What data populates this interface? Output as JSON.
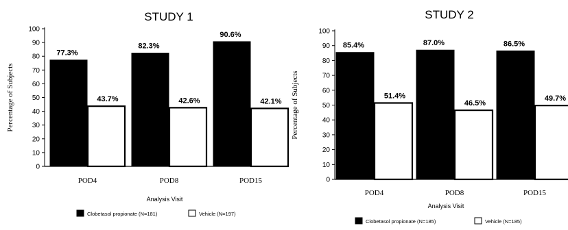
{
  "chart_data": [
    {
      "type": "bar",
      "title": "STUDY 1",
      "xlabel": "Analysis Visit",
      "ylabel": "Percentage of Subjects",
      "categories": [
        "POD4",
        "POD8",
        "POD15"
      ],
      "ylim": [
        0,
        100
      ],
      "yticks": [
        0,
        10,
        20,
        30,
        40,
        50,
        60,
        70,
        80,
        90,
        100
      ],
      "series": [
        {
          "name": "Clobetasol propionate (N=181)",
          "values": [
            77.3,
            82.3,
            90.6
          ],
          "labels": [
            "77.3%",
            "82.3%",
            "90.6%"
          ],
          "color": "#000000"
        },
        {
          "name": "Vehicle (N=197)",
          "values": [
            43.7,
            42.6,
            42.1
          ],
          "labels": [
            "43.7%",
            "42.6%",
            "42.1%"
          ],
          "color": "#ffffff"
        }
      ],
      "legend": "bottom",
      "grid": false
    },
    {
      "type": "bar",
      "title": "STUDY 2",
      "xlabel": "Analysis Visit",
      "ylabel": "Percentage of Subjects",
      "categories": [
        "POD4",
        "POD8",
        "POD15"
      ],
      "ylim": [
        0,
        100
      ],
      "yticks": [
        0,
        10,
        20,
        30,
        40,
        50,
        60,
        70,
        80,
        90,
        100
      ],
      "series": [
        {
          "name": "Clobetasol propionate (N=185)",
          "values": [
            85.4,
            87.0,
            86.5
          ],
          "labels": [
            "85.4%",
            "87.0%",
            "86.5%"
          ],
          "color": "#000000"
        },
        {
          "name": "Vehicle (N=185)",
          "values": [
            51.4,
            46.5,
            49.7
          ],
          "labels": [
            "51.4%",
            "46.5%",
            "49.7%"
          ],
          "color": "#ffffff"
        }
      ],
      "legend": "bottom",
      "grid": false
    }
  ]
}
